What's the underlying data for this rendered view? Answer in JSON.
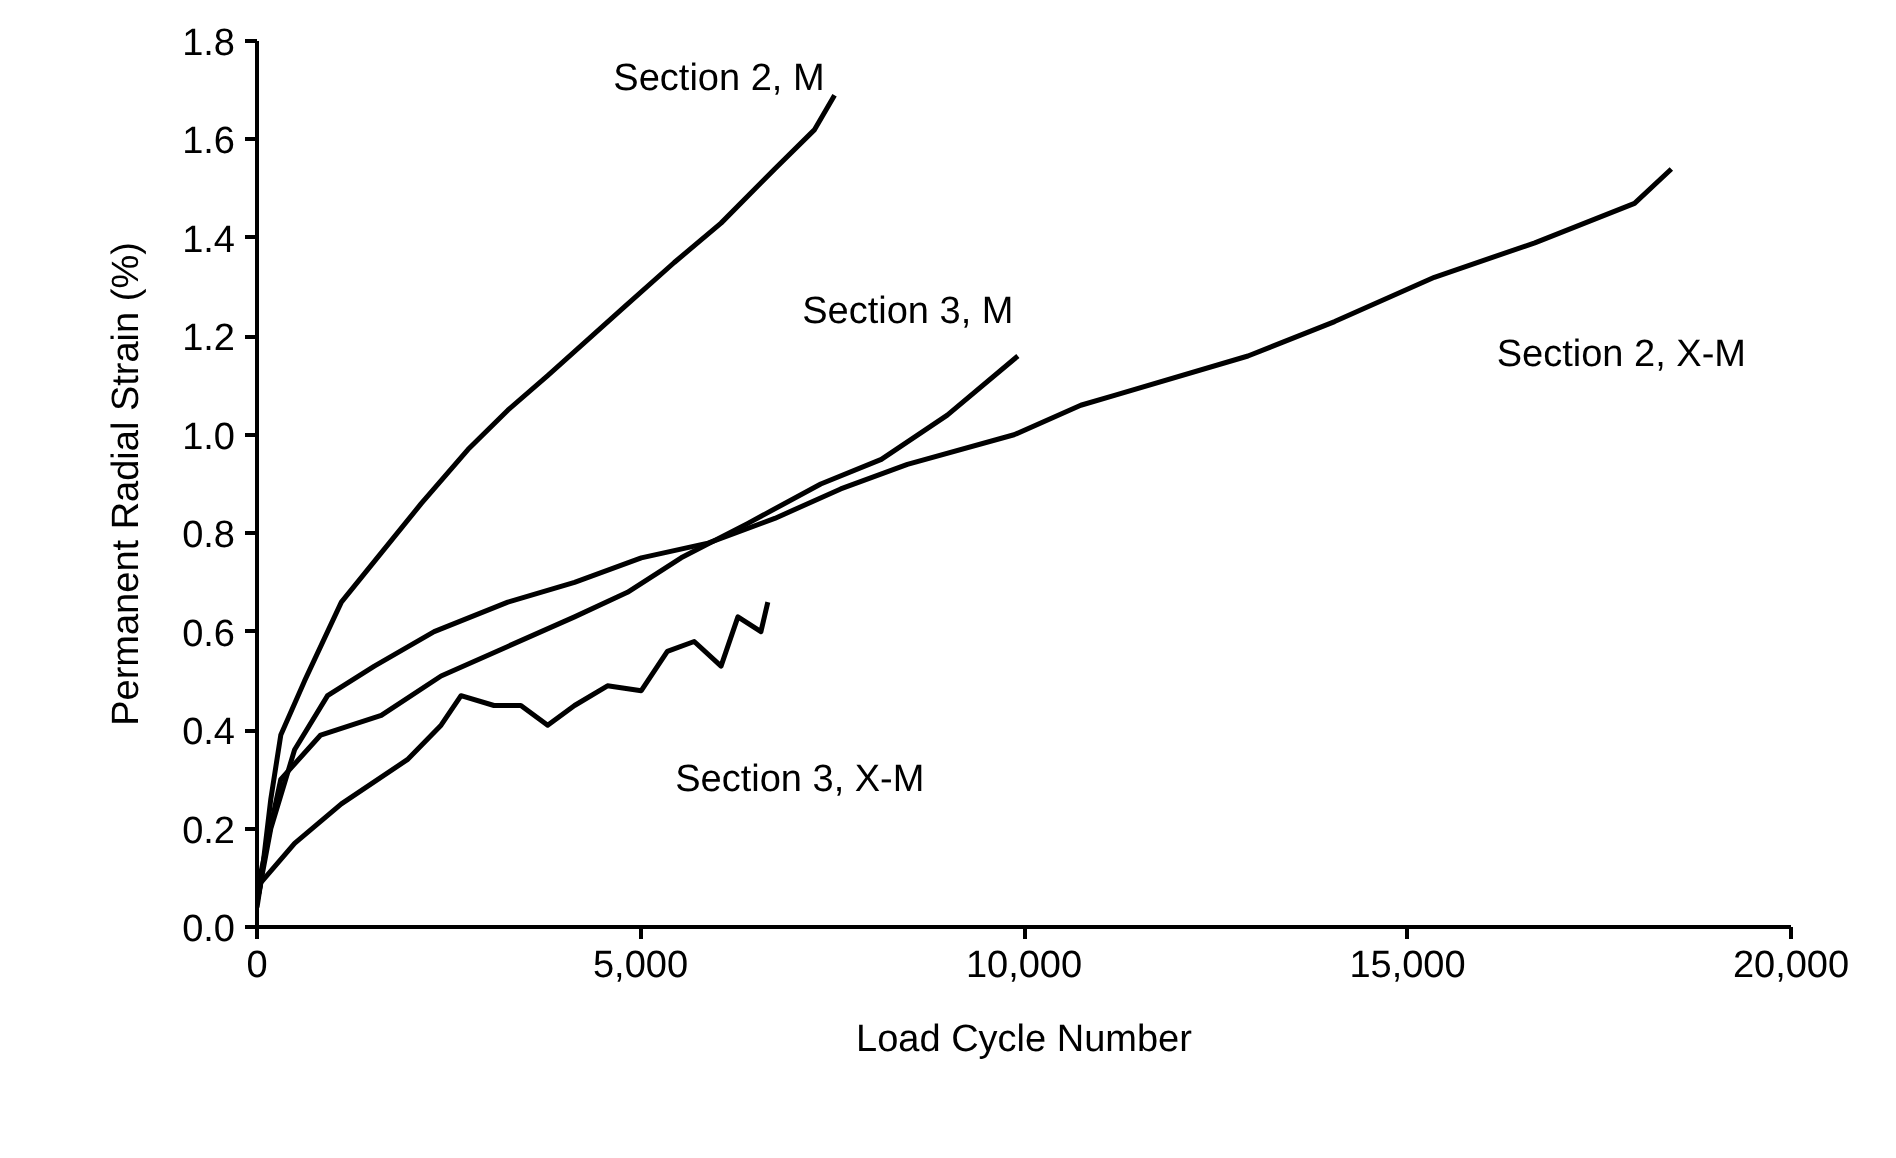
{
  "chart_data": {
    "type": "line",
    "xlabel": "Load Cycle Number",
    "ylabel": "Permanent Radial Strain (%)",
    "xlim": [
      0,
      20000
    ],
    "ylim": [
      0,
      1.8
    ],
    "xticks": [
      0,
      {
        "value": 5000,
        "label": "5,000"
      },
      {
        "value": 10000,
        "label": "10,000"
      },
      {
        "value": 15000,
        "label": "15,000"
      },
      {
        "value": 20000,
        "label": "20,000"
      }
    ],
    "yticks": [
      {
        "value": 0,
        "label": "0.0"
      },
      {
        "value": 0.2,
        "label": "0.2"
      },
      {
        "value": 0.4,
        "label": "0.4"
      },
      {
        "value": 0.6,
        "label": "0.6"
      },
      {
        "value": 0.8,
        "label": "0.8"
      },
      {
        "value": 1.0,
        "label": "1.0"
      },
      {
        "value": 1.2,
        "label": "1.2"
      },
      {
        "value": 1.4,
        "label": "1.4"
      },
      {
        "value": 1.6,
        "label": "1.6"
      },
      {
        "value": 1.8,
        "label": "1.8"
      }
    ],
    "grid": false,
    "legend": false,
    "marker": "none",
    "line_style": "solid",
    "series": [
      {
        "name": "Section 2, M",
        "color": "#000000",
        "x": [
          0,
          50,
          180,
          310,
          620,
          1100,
          1620,
          2140,
          2750,
          3270,
          3790,
          4790,
          5440,
          6050,
          6750,
          7270,
          7530
        ],
        "values": [
          0.05,
          0.09,
          0.26,
          0.39,
          0.5,
          0.66,
          0.76,
          0.86,
          0.97,
          1.05,
          1.12,
          1.26,
          1.35,
          1.43,
          1.54,
          1.62,
          1.69
        ]
      },
      {
        "name": "Section 2, X-M",
        "color": "#000000",
        "x": [
          0,
          180,
          490,
          920,
          1530,
          2310,
          3270,
          4140,
          5010,
          5880,
          6750,
          7610,
          8480,
          9870,
          10740,
          11180,
          12920,
          14050,
          15350,
          16660,
          17960,
          18440
        ],
        "values": [
          0.05,
          0.2,
          0.36,
          0.47,
          0.53,
          0.6,
          0.66,
          0.7,
          0.75,
          0.78,
          0.83,
          0.89,
          0.94,
          1.0,
          1.06,
          1.08,
          1.16,
          1.23,
          1.32,
          1.39,
          1.47,
          1.54
        ]
      },
      {
        "name": "Section 3, M",
        "color": "#000000",
        "x": [
          0,
          50,
          310,
          830,
          1620,
          2400,
          3270,
          4140,
          4830,
          5530,
          6400,
          7350,
          8140,
          9000,
          9920
        ],
        "values": [
          0.05,
          0.11,
          0.3,
          0.39,
          0.43,
          0.51,
          0.57,
          0.63,
          0.68,
          0.75,
          0.82,
          0.9,
          0.95,
          1.04,
          1.16
        ]
      },
      {
        "name": "Section 3, X-M",
        "color": "#000000",
        "x": [
          0,
          50,
          490,
          1100,
          1960,
          2400,
          2660,
          3090,
          3440,
          3790,
          4140,
          4570,
          5010,
          5350,
          5700,
          6050,
          6270,
          6570,
          6660
        ],
        "values": [
          0.04,
          0.09,
          0.17,
          0.25,
          0.34,
          0.41,
          0.47,
          0.45,
          0.45,
          0.41,
          0.45,
          0.49,
          0.48,
          0.56,
          0.58,
          0.53,
          0.63,
          0.6,
          0.66
        ]
      }
    ]
  }
}
